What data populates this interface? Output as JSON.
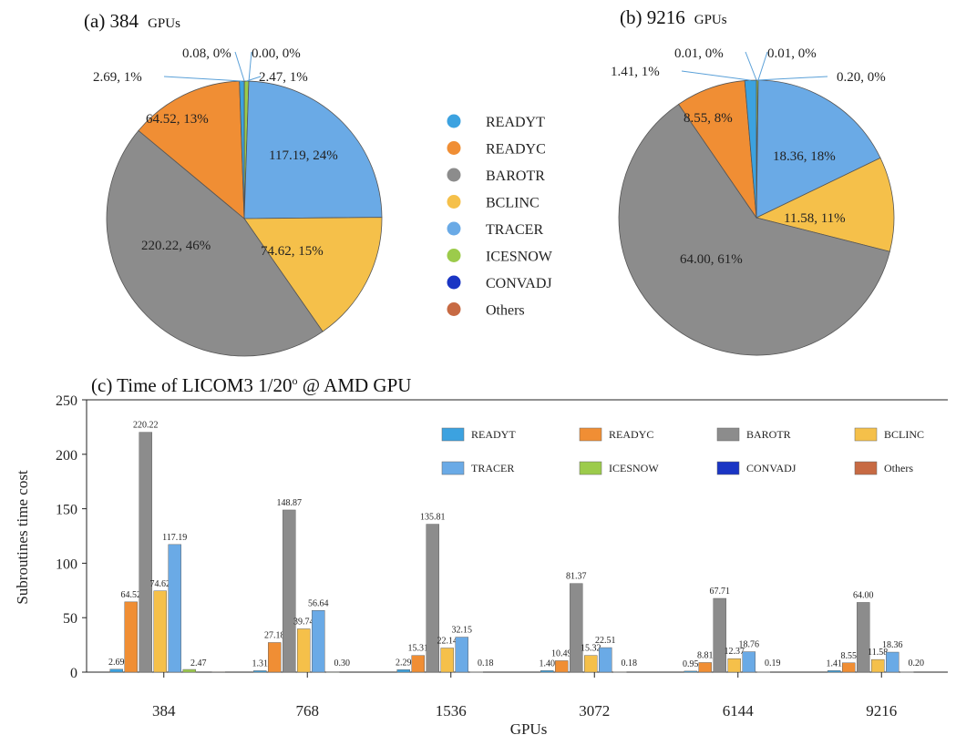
{
  "colors": {
    "READYT": "#3ca2e0",
    "READYC": "#f08e34",
    "BAROTR": "#8c8c8c",
    "BCLINC": "#f5c04a",
    "TRACER": "#6aaae6",
    "ICESNOW": "#9ccb4b",
    "CONVADJ": "#1a35c4",
    "Others": "#c76a43"
  },
  "chart_data": [
    {
      "type": "pie",
      "title_main": "(a) 384",
      "title_unit": "GPUs",
      "slices": [
        {
          "name": "READYT",
          "value": 2.69,
          "label": "2.69,   1%"
        },
        {
          "name": "READYC",
          "value": 64.52,
          "label": "64.52,  13%"
        },
        {
          "name": "BAROTR",
          "value": 220.22,
          "label": "220.22,  46%"
        },
        {
          "name": "BCLINC",
          "value": 74.62,
          "label": "74.62,  15%"
        },
        {
          "name": "TRACER",
          "value": 117.19,
          "label": "117.19,  24%"
        },
        {
          "name": "ICESNOW",
          "value": 2.47,
          "label": "2.47,   1%"
        },
        {
          "name": "CONVADJ",
          "value": 0.0,
          "label": "0.00,   0%"
        },
        {
          "name": "Others",
          "value": 0.08,
          "label": "0.08,   0%"
        }
      ]
    },
    {
      "type": "pie",
      "title_main": "(b) 9216",
      "title_unit": "GPUs",
      "slices": [
        {
          "name": "READYT",
          "value": 1.41,
          "label": "1.41,   1%"
        },
        {
          "name": "READYC",
          "value": 8.55,
          "label": "8.55,   8%"
        },
        {
          "name": "BAROTR",
          "value": 64.0,
          "label": "64.00,  61%"
        },
        {
          "name": "BCLINC",
          "value": 11.58,
          "label": "11.58,  11%"
        },
        {
          "name": "TRACER",
          "value": 18.36,
          "label": "18.36,  18%"
        },
        {
          "name": "ICESNOW",
          "value": 0.2,
          "label": "0.20,   0%"
        },
        {
          "name": "CONVADJ",
          "value": 0.01,
          "label": "0.01,   0%"
        },
        {
          "name": "Others",
          "value": 0.01,
          "label": "0.01,   0%"
        }
      ]
    },
    {
      "type": "bar",
      "title": "(c) Time of LICOM3 1/20",
      "title_sup": "o",
      "title_tail": " @ AMD GPU",
      "xlabel": "GPUs",
      "ylabel": "Subroutines time cost",
      "ylim": [
        0,
        250
      ],
      "yticks": [
        0,
        50,
        100,
        150,
        200,
        250
      ],
      "categories": [
        "384",
        "768",
        "1536",
        "3072",
        "6144",
        "9216"
      ],
      "series": [
        {
          "name": "READYT",
          "values": [
            2.69,
            1.31,
            2.29,
            1.4,
            0.95,
            1.41
          ],
          "labels": [
            "2.69",
            "1.31",
            "2.29",
            "1.40",
            "0.95",
            "1.41"
          ]
        },
        {
          "name": "READYC",
          "values": [
            64.52,
            27.18,
            15.31,
            10.49,
            8.81,
            8.55
          ],
          "labels": [
            "64.52",
            "27.18",
            "15.31",
            "10.49",
            "8.81",
            "8.55"
          ]
        },
        {
          "name": "BAROTR",
          "values": [
            220.22,
            148.87,
            135.81,
            81.37,
            67.71,
            64.0
          ],
          "labels": [
            "220.22",
            "148.87",
            "135.81",
            "81.37",
            "67.71",
            "64.00"
          ]
        },
        {
          "name": "BCLINC",
          "values": [
            74.62,
            39.74,
            22.14,
            15.32,
            12.37,
            11.58
          ],
          "labels": [
            "74.62",
            "39.74",
            "22.14",
            "15.32",
            "12.37",
            "11.58"
          ]
        },
        {
          "name": "TRACER",
          "values": [
            117.19,
            56.64,
            32.15,
            22.51,
            18.76,
            18.36
          ],
          "labels": [
            "117.19",
            "56.64",
            "32.15",
            "22.51",
            "18.76",
            "18.36"
          ]
        },
        {
          "name": "ICESNOW",
          "values": [
            2.47,
            0.3,
            0.18,
            0.18,
            0.19,
            0.2
          ],
          "labels": [
            "2.47",
            "0.30",
            "0.18",
            "0.18",
            "0.19",
            "0.20"
          ]
        },
        {
          "name": "CONVADJ",
          "values": [
            0.0,
            0.0,
            0.0,
            0.0,
            0.0,
            0.0
          ],
          "labels": [
            "",
            "",
            "",
            "",
            "",
            ""
          ]
        },
        {
          "name": "Others",
          "values": [
            0.08,
            0.0,
            0.0,
            0.0,
            0.0,
            0.0
          ],
          "labels": [
            "",
            "",
            "",
            "",
            "",
            ""
          ]
        }
      ],
      "legend": [
        "READYT",
        "READYC",
        "BAROTR",
        "BCLINC",
        "TRACER",
        "ICESNOW",
        "CONVADJ",
        "Others"
      ]
    }
  ],
  "middle_legend": [
    "READYT",
    "READYC",
    "BAROTR",
    "BCLINC",
    "TRACER",
    "ICESNOW",
    "CONVADJ",
    "Others"
  ]
}
